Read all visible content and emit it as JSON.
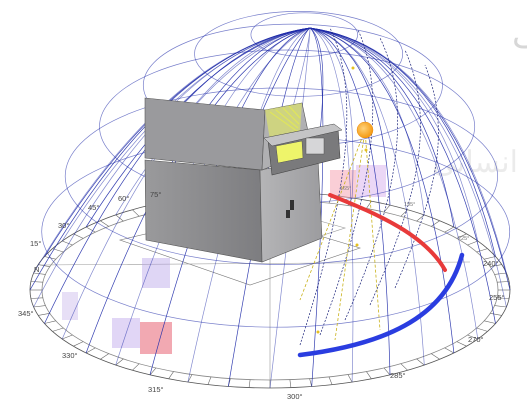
{
  "compass": {
    "labels": [
      "N",
      "15°",
      "30°",
      "45°",
      "60°",
      "75°",
      "240°",
      "255°",
      "270°",
      "285°",
      "300°",
      "315°",
      "330°",
      "345°"
    ],
    "small_labels": [
      "165°",
      "195°",
      "225°"
    ]
  },
  "watermark": {
    "top": "پژوهشگاه علوم انسانی و مطالعات فرهنگی",
    "middle": "پرتال جامع علوم انسانی"
  },
  "colors": {
    "dome_lines": "#1e2aa8",
    "sun": "#f7a21b",
    "sun_path_summer": "#e83a3a",
    "sun_path_winter": "#2a3de0",
    "building": "#8e8e90",
    "window_glow": "#e8f05a"
  }
}
